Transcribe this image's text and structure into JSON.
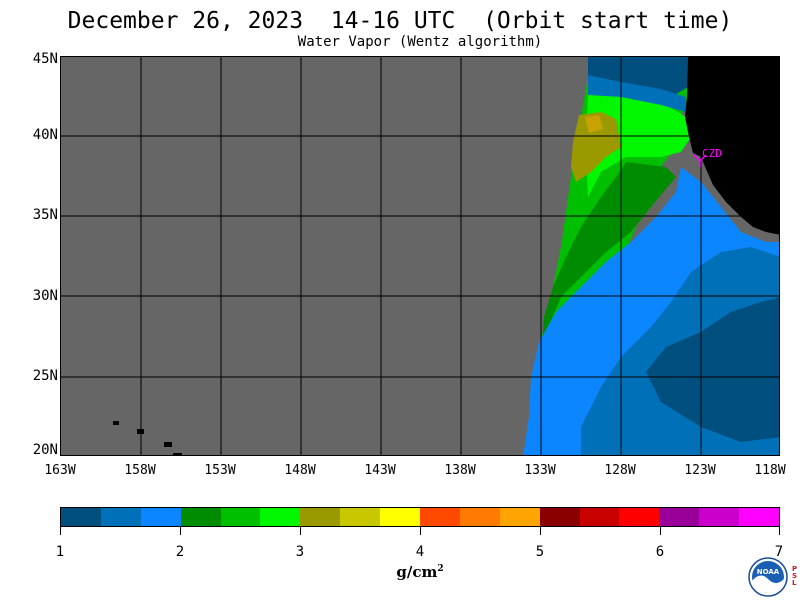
{
  "header": {
    "title": "December 26, 2023  14-16 UTC  (Orbit start time)",
    "subtitle": "Water Vapor (Wentz algorithm)"
  },
  "map": {
    "lat_labels": [
      "45N",
      "40N",
      "35N",
      "30N",
      "25N",
      "20N"
    ],
    "lon_labels": [
      "163W",
      "158W",
      "153W",
      "148W",
      "143W",
      "138W",
      "133W",
      "128W",
      "123W",
      "118W"
    ],
    "station_label": "CZD",
    "colors": {
      "no_data": "#666666",
      "land": "#000000",
      "grid": "#000000",
      "station": "#ff00ff"
    }
  },
  "legend": {
    "colors": [
      "#004f7f",
      "#0070b8",
      "#0b86ff",
      "#008c00",
      "#00bf00",
      "#00f700",
      "#9a9a00",
      "#c8c800",
      "#ffff00",
      "#ff4800",
      "#ff7a00",
      "#ffa400",
      "#8a0000",
      "#c80000",
      "#ff0000",
      "#990099",
      "#cc00cc",
      "#ff00ff"
    ],
    "tick_labels": [
      "1",
      "2",
      "3",
      "4",
      "5",
      "6",
      "7"
    ],
    "unit": "g/cm",
    "unit_exp": "2"
  },
  "logo": {
    "text": "NOAA",
    "side_text": "PSL"
  }
}
